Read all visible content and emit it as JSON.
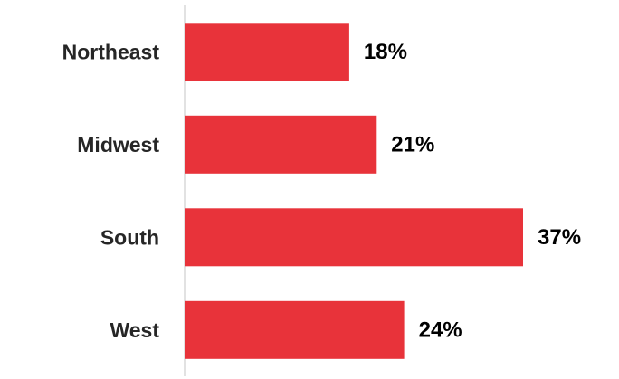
{
  "chart_data": {
    "type": "bar",
    "orientation": "horizontal",
    "categories": [
      "Northeast",
      "Midwest",
      "South",
      "West"
    ],
    "values": [
      18,
      21,
      37,
      24
    ],
    "value_labels": [
      "18%",
      "21%",
      "37%",
      "24%"
    ],
    "unit": "%",
    "xlim": [
      0,
      37
    ],
    "grid": false,
    "legend": "none",
    "bar_color": "#e8333a",
    "axis_color": "#d9d9d9"
  }
}
